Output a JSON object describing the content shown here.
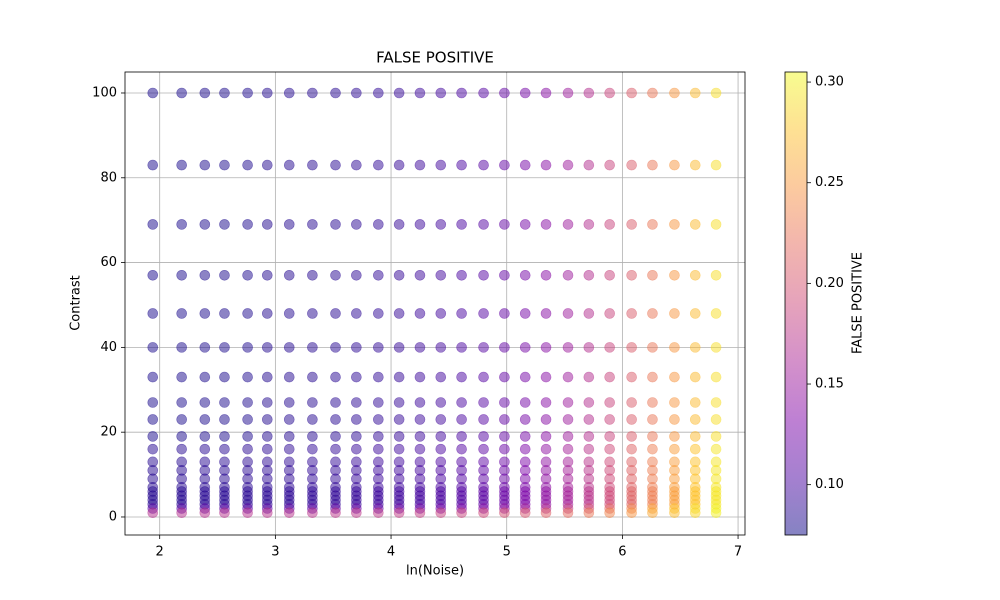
{
  "chart_data": {
    "type": "scatter",
    "title": "FALSE POSITIVE",
    "x_label": "ln(Noise)",
    "y_label": "Contrast",
    "colorbar_label": "FALSE POSITIVE",
    "colormap": "plasma",
    "alpha": 0.5,
    "grid": true,
    "xlim": [
      1.7,
      7.06
    ],
    "ylim": [
      -4.25,
      104.95
    ],
    "xticks": [
      2,
      3,
      4,
      5,
      6,
      7
    ],
    "yticks": [
      0,
      20,
      40,
      60,
      80,
      100
    ],
    "clim": [
      0.075,
      0.305
    ],
    "cticks": [
      {
        "value": 0.1,
        "label": "0.10"
      },
      0.15,
      {
        "value": 0.2,
        "label": "0.20"
      },
      0.25,
      {
        "value": 0.3,
        "label": "0.30"
      }
    ],
    "x": [
      1.94,
      2.19,
      2.39,
      2.56,
      2.76,
      2.93,
      3.12,
      3.32,
      3.52,
      3.7,
      3.89,
      4.07,
      4.25,
      4.43,
      4.61,
      4.8,
      4.98,
      5.16,
      5.34,
      5.53,
      5.71,
      5.89,
      6.08,
      6.26,
      6.45,
      6.63,
      6.81
    ],
    "y": [
      100,
      83,
      69,
      57,
      48,
      40,
      33,
      27,
      23,
      19,
      16,
      13,
      11,
      9,
      7,
      6,
      5,
      4,
      3,
      2,
      1
    ],
    "values": [
      [
        0.08,
        0.08,
        0.081,
        0.081,
        0.082,
        0.083,
        0.084,
        0.085,
        0.086,
        0.088,
        0.09,
        0.092,
        0.095,
        0.098,
        0.102,
        0.108,
        0.116,
        0.126,
        0.138,
        0.152,
        0.168,
        0.186,
        0.206,
        0.226,
        0.248,
        0.27,
        0.29
      ],
      [
        0.08,
        0.08,
        0.081,
        0.081,
        0.082,
        0.083,
        0.084,
        0.085,
        0.086,
        0.088,
        0.09,
        0.092,
        0.095,
        0.098,
        0.102,
        0.108,
        0.116,
        0.126,
        0.138,
        0.152,
        0.168,
        0.186,
        0.206,
        0.226,
        0.248,
        0.27,
        0.29
      ],
      [
        0.08,
        0.08,
        0.081,
        0.081,
        0.082,
        0.083,
        0.084,
        0.085,
        0.086,
        0.088,
        0.09,
        0.092,
        0.095,
        0.098,
        0.102,
        0.108,
        0.116,
        0.126,
        0.138,
        0.152,
        0.168,
        0.186,
        0.206,
        0.226,
        0.248,
        0.27,
        0.29
      ],
      [
        0.08,
        0.08,
        0.081,
        0.081,
        0.082,
        0.083,
        0.084,
        0.085,
        0.086,
        0.088,
        0.09,
        0.092,
        0.095,
        0.098,
        0.102,
        0.108,
        0.116,
        0.126,
        0.138,
        0.152,
        0.168,
        0.186,
        0.206,
        0.226,
        0.248,
        0.27,
        0.29
      ],
      [
        0.08,
        0.08,
        0.081,
        0.081,
        0.082,
        0.083,
        0.084,
        0.085,
        0.086,
        0.088,
        0.09,
        0.092,
        0.095,
        0.098,
        0.102,
        0.108,
        0.116,
        0.126,
        0.138,
        0.152,
        0.168,
        0.186,
        0.206,
        0.226,
        0.248,
        0.27,
        0.29
      ],
      [
        0.08,
        0.08,
        0.081,
        0.081,
        0.082,
        0.083,
        0.084,
        0.085,
        0.086,
        0.088,
        0.09,
        0.092,
        0.095,
        0.098,
        0.102,
        0.108,
        0.116,
        0.126,
        0.138,
        0.152,
        0.168,
        0.186,
        0.206,
        0.226,
        0.248,
        0.27,
        0.29
      ],
      [
        0.08,
        0.08,
        0.081,
        0.081,
        0.082,
        0.083,
        0.084,
        0.085,
        0.086,
        0.088,
        0.09,
        0.092,
        0.095,
        0.098,
        0.102,
        0.108,
        0.116,
        0.126,
        0.138,
        0.152,
        0.168,
        0.186,
        0.206,
        0.226,
        0.248,
        0.27,
        0.29
      ],
      [
        0.08,
        0.08,
        0.081,
        0.081,
        0.082,
        0.083,
        0.084,
        0.085,
        0.086,
        0.088,
        0.09,
        0.092,
        0.095,
        0.098,
        0.102,
        0.108,
        0.116,
        0.126,
        0.138,
        0.152,
        0.168,
        0.186,
        0.206,
        0.226,
        0.248,
        0.27,
        0.29
      ],
      [
        0.08,
        0.08,
        0.081,
        0.081,
        0.082,
        0.083,
        0.084,
        0.085,
        0.086,
        0.088,
        0.09,
        0.092,
        0.095,
        0.098,
        0.102,
        0.108,
        0.116,
        0.126,
        0.138,
        0.152,
        0.168,
        0.186,
        0.206,
        0.226,
        0.248,
        0.27,
        0.29
      ],
      [
        0.08,
        0.08,
        0.081,
        0.081,
        0.082,
        0.083,
        0.084,
        0.085,
        0.086,
        0.088,
        0.09,
        0.092,
        0.095,
        0.098,
        0.102,
        0.108,
        0.116,
        0.126,
        0.138,
        0.152,
        0.168,
        0.186,
        0.206,
        0.226,
        0.248,
        0.27,
        0.29
      ],
      [
        0.085,
        0.085,
        0.086,
        0.086,
        0.087,
        0.088,
        0.089,
        0.09,
        0.091,
        0.093,
        0.095,
        0.097,
        0.1,
        0.103,
        0.107,
        0.113,
        0.121,
        0.131,
        0.143,
        0.157,
        0.173,
        0.191,
        0.211,
        0.231,
        0.253,
        0.275,
        0.295
      ],
      [
        0.085,
        0.085,
        0.086,
        0.086,
        0.087,
        0.088,
        0.089,
        0.09,
        0.091,
        0.093,
        0.095,
        0.097,
        0.1,
        0.103,
        0.107,
        0.113,
        0.121,
        0.131,
        0.143,
        0.157,
        0.173,
        0.191,
        0.211,
        0.231,
        0.253,
        0.275,
        0.295
      ],
      [
        0.085,
        0.085,
        0.086,
        0.086,
        0.087,
        0.088,
        0.089,
        0.09,
        0.091,
        0.093,
        0.095,
        0.097,
        0.1,
        0.103,
        0.107,
        0.113,
        0.121,
        0.131,
        0.143,
        0.157,
        0.173,
        0.191,
        0.211,
        0.231,
        0.253,
        0.275,
        0.295
      ],
      [
        0.085,
        0.085,
        0.086,
        0.086,
        0.087,
        0.088,
        0.089,
        0.09,
        0.091,
        0.093,
        0.095,
        0.097,
        0.1,
        0.103,
        0.107,
        0.113,
        0.121,
        0.131,
        0.143,
        0.157,
        0.173,
        0.191,
        0.211,
        0.231,
        0.253,
        0.275,
        0.295
      ],
      [
        0.085,
        0.085,
        0.086,
        0.086,
        0.087,
        0.088,
        0.089,
        0.09,
        0.091,
        0.093,
        0.095,
        0.097,
        0.1,
        0.103,
        0.107,
        0.113,
        0.121,
        0.131,
        0.143,
        0.157,
        0.173,
        0.191,
        0.211,
        0.231,
        0.253,
        0.275,
        0.295
      ],
      [
        0.085,
        0.085,
        0.086,
        0.086,
        0.087,
        0.088,
        0.089,
        0.09,
        0.091,
        0.093,
        0.095,
        0.097,
        0.1,
        0.103,
        0.107,
        0.113,
        0.121,
        0.131,
        0.143,
        0.157,
        0.173,
        0.191,
        0.211,
        0.231,
        0.253,
        0.275,
        0.295
      ],
      [
        0.085,
        0.085,
        0.086,
        0.086,
        0.087,
        0.088,
        0.089,
        0.09,
        0.091,
        0.093,
        0.095,
        0.097,
        0.1,
        0.103,
        0.107,
        0.113,
        0.121,
        0.131,
        0.143,
        0.157,
        0.173,
        0.191,
        0.211,
        0.231,
        0.253,
        0.275,
        0.295
      ],
      [
        0.085,
        0.085,
        0.086,
        0.086,
        0.087,
        0.088,
        0.089,
        0.09,
        0.091,
        0.093,
        0.095,
        0.097,
        0.1,
        0.103,
        0.107,
        0.113,
        0.121,
        0.131,
        0.143,
        0.157,
        0.173,
        0.191,
        0.211,
        0.231,
        0.253,
        0.275,
        0.295
      ],
      [
        0.085,
        0.085,
        0.086,
        0.086,
        0.087,
        0.088,
        0.089,
        0.09,
        0.091,
        0.093,
        0.095,
        0.097,
        0.1,
        0.103,
        0.107,
        0.113,
        0.121,
        0.131,
        0.143,
        0.157,
        0.173,
        0.191,
        0.211,
        0.231,
        0.253,
        0.275,
        0.295
      ],
      [
        0.11,
        0.11,
        0.111,
        0.111,
        0.112,
        0.113,
        0.114,
        0.115,
        0.116,
        0.118,
        0.12,
        0.122,
        0.125,
        0.128,
        0.132,
        0.138,
        0.146,
        0.156,
        0.168,
        0.182,
        0.198,
        0.216,
        0.236,
        0.256,
        0.275,
        0.29,
        0.3
      ],
      [
        0.17,
        0.17,
        0.17,
        0.171,
        0.171,
        0.172,
        0.172,
        0.173,
        0.174,
        0.175,
        0.177,
        0.179,
        0.181,
        0.184,
        0.187,
        0.191,
        0.196,
        0.202,
        0.209,
        0.217,
        0.226,
        0.236,
        0.247,
        0.259,
        0.272,
        0.286,
        0.3
      ]
    ]
  }
}
